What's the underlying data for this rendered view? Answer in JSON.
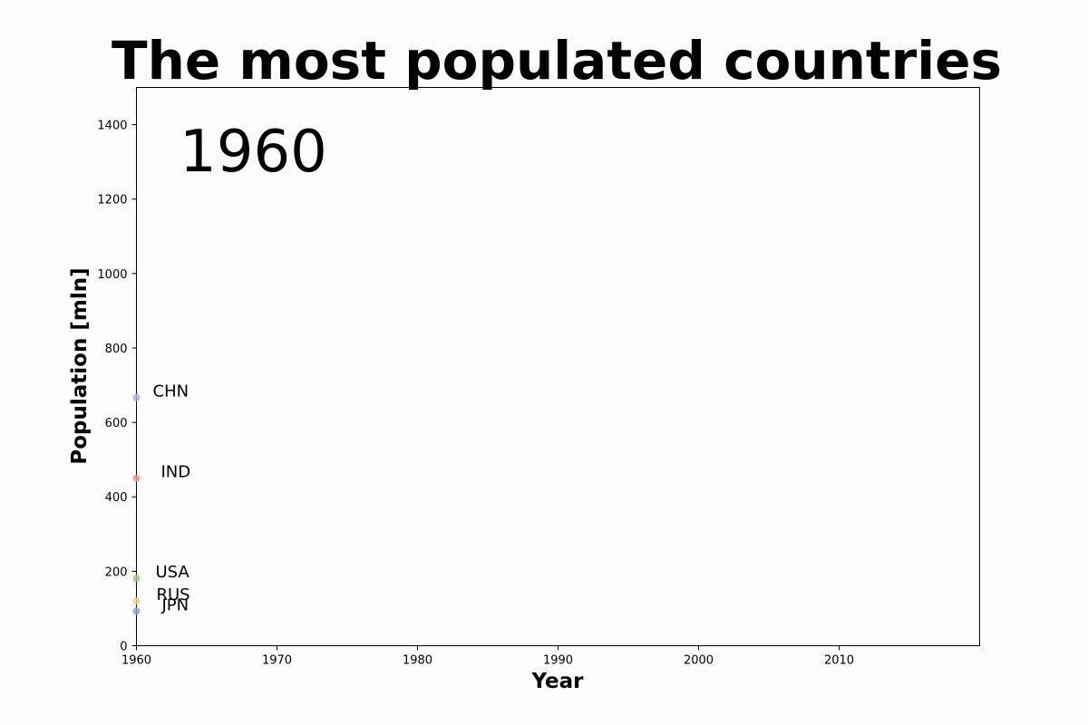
{
  "chart_data": {
    "type": "scatter",
    "title": "The most populated countries",
    "xlabel": "Year",
    "ylabel": "Population [mln]",
    "current_year_label": "1960",
    "xlim": [
      1960,
      2020
    ],
    "ylim": [
      0,
      1500
    ],
    "xticks": [
      1960,
      1970,
      1980,
      1990,
      2000,
      2010
    ],
    "yticks": [
      0,
      200,
      400,
      600,
      800,
      1000,
      1200,
      1400
    ],
    "grid": false,
    "series": [
      {
        "name": "CHN",
        "color": "#aab3d8",
        "points": [
          {
            "x": 1960,
            "y": 667
          }
        ]
      },
      {
        "name": "IND",
        "color": "#e79a8a",
        "points": [
          {
            "x": 1960,
            "y": 450
          }
        ]
      },
      {
        "name": "USA",
        "color": "#9cc98a",
        "points": [
          {
            "x": 1960,
            "y": 181
          }
        ]
      },
      {
        "name": "RUS",
        "color": "#f1d08a",
        "points": [
          {
            "x": 1960,
            "y": 120
          }
        ]
      },
      {
        "name": "JPN",
        "color": "#8aa6c8",
        "points": [
          {
            "x": 1960,
            "y": 93
          }
        ]
      }
    ]
  }
}
